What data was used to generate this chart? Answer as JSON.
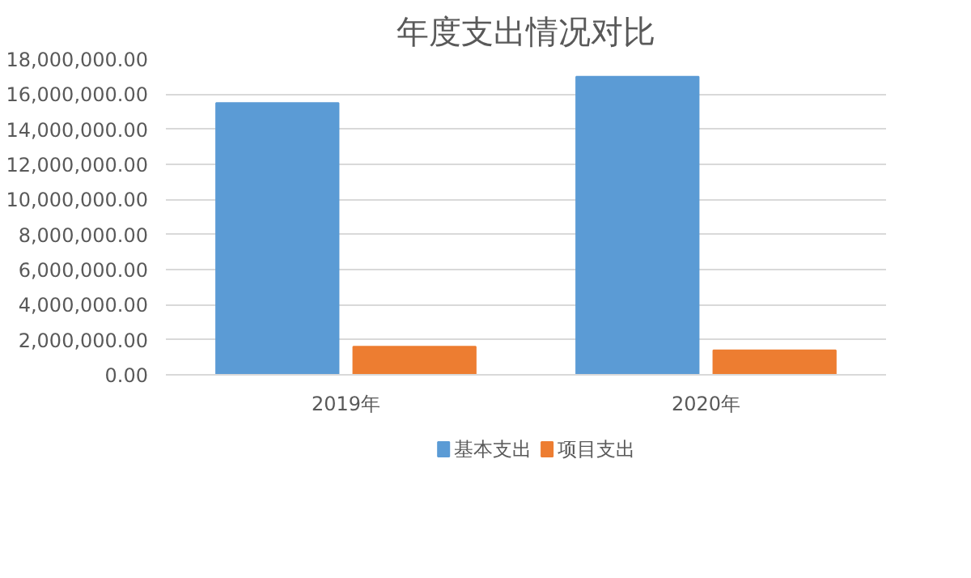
{
  "chart_data": {
    "type": "bar",
    "title": "年度支出情况对比",
    "categories": [
      "2019年",
      "2020年"
    ],
    "series": [
      {
        "name": "基本支出",
        "color": "#5b9bd5",
        "values": [
          15500000,
          17000000
        ]
      },
      {
        "name": "项目支出",
        "color": "#ed7d31",
        "values": [
          1600000,
          1400000
        ]
      }
    ],
    "ylim": [
      0,
      18000000
    ],
    "yticks": [
      {
        "value": 0,
        "label": "0.00"
      },
      {
        "value": 2000000,
        "label": "2,000,000.00"
      },
      {
        "value": 4000000,
        "label": "4,000,000.00"
      },
      {
        "value": 6000000,
        "label": "6,000,000.00"
      },
      {
        "value": 8000000,
        "label": "8,000,000.00"
      },
      {
        "value": 10000000,
        "label": "10,000,000.00"
      },
      {
        "value": 12000000,
        "label": "12,000,000.00"
      },
      {
        "value": 14000000,
        "label": "14,000,000.00"
      },
      {
        "value": 16000000,
        "label": "16,000,000.00"
      },
      {
        "value": 18000000,
        "label": "18,000,000.00"
      }
    ],
    "grid": "y",
    "legend": "bottom"
  }
}
